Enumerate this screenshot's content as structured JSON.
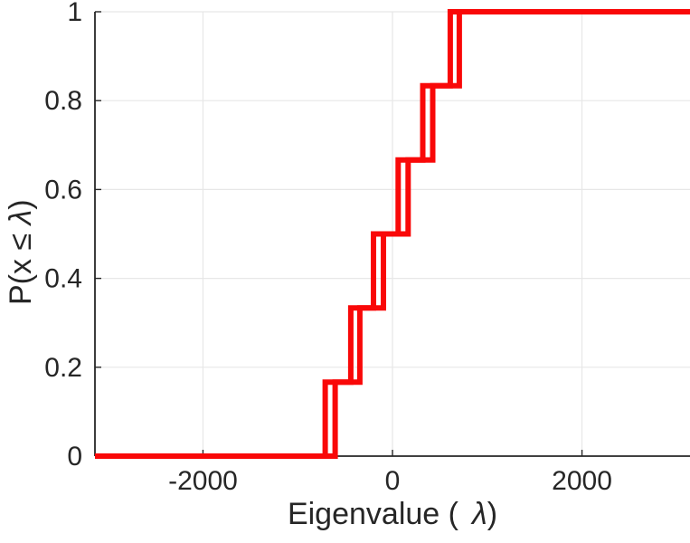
{
  "figure": {
    "background": "#ffffff",
    "title": ""
  },
  "chart_data": {
    "type": "line",
    "subtype": "empirical-cdf-staircase",
    "title": "",
    "xlabel": {
      "before": "Eigenvalue (",
      "symbol": "λ",
      "after": ")"
    },
    "ylabel": {
      "before": "P(x ≤ ",
      "symbol": "λ",
      "after": ")"
    },
    "xlim": [
      -3140,
      3140
    ],
    "ylim": [
      0,
      1
    ],
    "x_ticks": [
      -2000,
      0,
      2000
    ],
    "x_tick_labels": [
      "-2000",
      "0",
      "2000"
    ],
    "y_ticks": [
      0,
      0.2,
      0.4,
      0.6,
      0.8,
      1
    ],
    "y_tick_labels": [
      "0",
      "0.2",
      "0.4",
      "0.6",
      "0.8",
      "1"
    ],
    "grid": true,
    "legend": "none",
    "cdf_levels": [
      0.1667,
      0.3333,
      0.5,
      0.6667,
      0.8333,
      1
    ],
    "series": [
      {
        "name": "ecdf-staircase-left",
        "eigenvalues": [
          -710,
          -440,
          -200,
          60,
          320,
          610
        ]
      },
      {
        "name": "ecdf-staircase-right",
        "eigenvalues": [
          -605,
          -345,
          -95,
          165,
          425,
          705
        ]
      }
    ],
    "colors": {
      "line": "#f90808",
      "grid": "#e7e7e7",
      "axis": "#262626",
      "text": "#262626"
    },
    "line_width": 6
  }
}
